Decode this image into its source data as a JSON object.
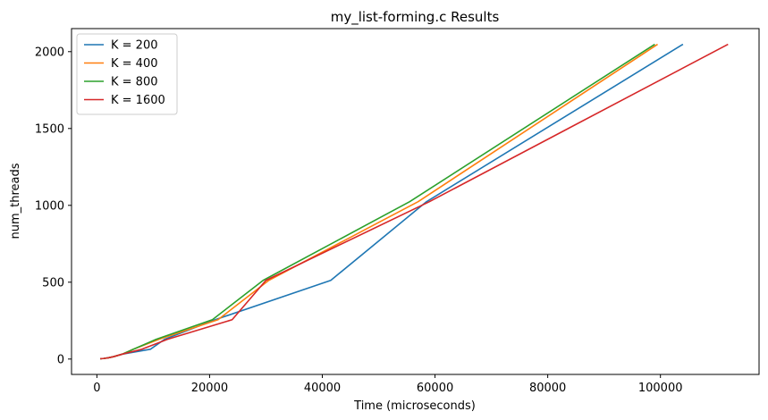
{
  "chart_data": {
    "type": "line",
    "title": "my_list-forming.c Results",
    "xlabel": "Time (microseconds)",
    "ylabel": "num_threads",
    "xlim": [
      -4500,
      117500
    ],
    "ylim": [
      -100,
      2150
    ],
    "xticks": [
      0,
      20000,
      40000,
      60000,
      80000,
      100000
    ],
    "yticks": [
      0,
      500,
      1000,
      1500,
      2000
    ],
    "grid": false,
    "legend_position": "top-left",
    "series": [
      {
        "name": "K = 200",
        "color": "#1f77b4",
        "points": [
          [
            600,
            2
          ],
          [
            1200,
            4
          ],
          [
            2000,
            8
          ],
          [
            3000,
            16
          ],
          [
            4500,
            32
          ],
          [
            9500,
            64
          ],
          [
            12000,
            128
          ],
          [
            21000,
            256
          ],
          [
            41500,
            512
          ],
          [
            58500,
            1024
          ],
          [
            104000,
            2048
          ]
        ]
      },
      {
        "name": "K = 400",
        "color": "#ff7f0e",
        "points": [
          [
            600,
            2
          ],
          [
            1200,
            4
          ],
          [
            2000,
            8
          ],
          [
            3000,
            16
          ],
          [
            4500,
            32
          ],
          [
            6500,
            64
          ],
          [
            11000,
            128
          ],
          [
            21500,
            256
          ],
          [
            30500,
            512
          ],
          [
            57000,
            1024
          ],
          [
            99500,
            2048
          ]
        ]
      },
      {
        "name": "K = 800",
        "color": "#2ca02c",
        "points": [
          [
            600,
            2
          ],
          [
            1200,
            4
          ],
          [
            2000,
            8
          ],
          [
            3000,
            16
          ],
          [
            4500,
            32
          ],
          [
            6500,
            64
          ],
          [
            10500,
            128
          ],
          [
            20500,
            256
          ],
          [
            29500,
            512
          ],
          [
            55500,
            1024
          ],
          [
            99000,
            2048
          ]
        ]
      },
      {
        "name": "K = 1600",
        "color": "#d62728",
        "points": [
          [
            600,
            2
          ],
          [
            1200,
            4
          ],
          [
            2000,
            8
          ],
          [
            3000,
            16
          ],
          [
            4500,
            32
          ],
          [
            8000,
            64
          ],
          [
            12500,
            128
          ],
          [
            24000,
            256
          ],
          [
            30000,
            512
          ],
          [
            59000,
            1024
          ],
          [
            112000,
            2048
          ]
        ]
      }
    ]
  }
}
